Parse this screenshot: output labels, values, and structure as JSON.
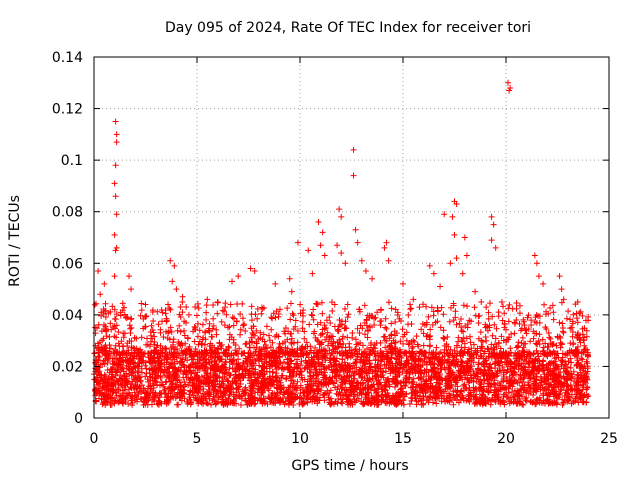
{
  "chart_data": {
    "type": "scatter",
    "title": "Day 095 of 2024, Rate Of TEC Index for receiver tori",
    "xlabel": "GPS time / hours",
    "ylabel": "ROTI / TECUs",
    "xlim": [
      0,
      25
    ],
    "ylim": [
      0,
      0.14
    ],
    "xticks": [
      0,
      5,
      10,
      15,
      20,
      25
    ],
    "xtick_labels": [
      "0",
      "5",
      "10",
      "15",
      "20",
      "25"
    ],
    "yticks": [
      0,
      0.02,
      0.04,
      0.06,
      0.08,
      0.1,
      0.12,
      0.14
    ],
    "ytick_labels": [
      "0",
      "0.02",
      "0.04",
      "0.06",
      "0.08",
      "0.1",
      "0.12",
      "0.14"
    ],
    "grid": true,
    "marker": "+",
    "color": "#ff0000",
    "data_span_hours": [
      0,
      24
    ],
    "dense_band": [
      0.005,
      0.025
    ],
    "series": [
      {
        "name": "ROTI",
        "points": [
          [
            0.2,
            0.057
          ],
          [
            0.3,
            0.048
          ],
          [
            0.5,
            0.052
          ],
          [
            1.05,
            0.115
          ],
          [
            1.1,
            0.11
          ],
          [
            1.1,
            0.107
          ],
          [
            1.05,
            0.098
          ],
          [
            1.0,
            0.091
          ],
          [
            1.05,
            0.086
          ],
          [
            1.1,
            0.079
          ],
          [
            1.0,
            0.071
          ],
          [
            1.05,
            0.065
          ],
          [
            1.1,
            0.066
          ],
          [
            1.0,
            0.055
          ],
          [
            1.7,
            0.055
          ],
          [
            1.8,
            0.05
          ],
          [
            2.5,
            0.044
          ],
          [
            3.7,
            0.061
          ],
          [
            3.9,
            0.059
          ],
          [
            3.8,
            0.053
          ],
          [
            4.0,
            0.05
          ],
          [
            4.3,
            0.047
          ],
          [
            5.5,
            0.046
          ],
          [
            6.0,
            0.045
          ],
          [
            6.7,
            0.053
          ],
          [
            7.0,
            0.055
          ],
          [
            7.6,
            0.058
          ],
          [
            7.8,
            0.057
          ],
          [
            8.8,
            0.052
          ],
          [
            9.5,
            0.054
          ],
          [
            9.6,
            0.049
          ],
          [
            9.9,
            0.068
          ],
          [
            10.4,
            0.065
          ],
          [
            10.6,
            0.056
          ],
          [
            10.9,
            0.076
          ],
          [
            11.1,
            0.072
          ],
          [
            11.0,
            0.067
          ],
          [
            11.2,
            0.063
          ],
          [
            11.9,
            0.081
          ],
          [
            12.0,
            0.078
          ],
          [
            11.8,
            0.067
          ],
          [
            12.0,
            0.064
          ],
          [
            12.2,
            0.06
          ],
          [
            12.6,
            0.104
          ],
          [
            12.6,
            0.094
          ],
          [
            12.7,
            0.073
          ],
          [
            12.8,
            0.068
          ],
          [
            13.0,
            0.061
          ],
          [
            13.2,
            0.057
          ],
          [
            13.5,
            0.054
          ],
          [
            14.2,
            0.068
          ],
          [
            14.1,
            0.066
          ],
          [
            14.3,
            0.061
          ],
          [
            15.0,
            0.052
          ],
          [
            15.5,
            0.046
          ],
          [
            15.8,
            0.043
          ],
          [
            16.3,
            0.059
          ],
          [
            16.5,
            0.056
          ],
          [
            16.8,
            0.051
          ],
          [
            17.0,
            0.079
          ],
          [
            17.5,
            0.084
          ],
          [
            17.6,
            0.083
          ],
          [
            17.4,
            0.078
          ],
          [
            17.5,
            0.071
          ],
          [
            17.6,
            0.062
          ],
          [
            17.3,
            0.06
          ],
          [
            18.0,
            0.07
          ],
          [
            18.1,
            0.063
          ],
          [
            17.9,
            0.056
          ],
          [
            18.5,
            0.049
          ],
          [
            18.8,
            0.045
          ],
          [
            19.3,
            0.078
          ],
          [
            19.4,
            0.075
          ],
          [
            19.3,
            0.069
          ],
          [
            19.5,
            0.066
          ],
          [
            19.8,
            0.045
          ],
          [
            20.1,
            0.13
          ],
          [
            20.2,
            0.128
          ],
          [
            20.15,
            0.127
          ],
          [
            20.5,
            0.038
          ],
          [
            20.9,
            0.036
          ],
          [
            21.4,
            0.063
          ],
          [
            21.5,
            0.06
          ],
          [
            21.6,
            0.055
          ],
          [
            21.8,
            0.052
          ],
          [
            22.3,
            0.041
          ],
          [
            22.6,
            0.055
          ],
          [
            22.7,
            0.05
          ],
          [
            22.8,
            0.046
          ],
          [
            23.5,
            0.032
          ],
          [
            23.8,
            0.028
          ]
        ]
      }
    ]
  }
}
